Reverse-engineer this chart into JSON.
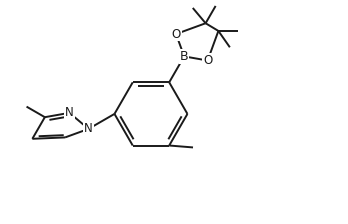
{
  "bg_color": "#ffffff",
  "line_color": "#1a1a1a",
  "line_width": 1.4,
  "font_size": 8.5,
  "figsize": [
    3.48,
    2.24
  ],
  "dpi": 100,
  "xlim": [
    0,
    8.7
  ],
  "ylim": [
    0,
    5.6
  ]
}
